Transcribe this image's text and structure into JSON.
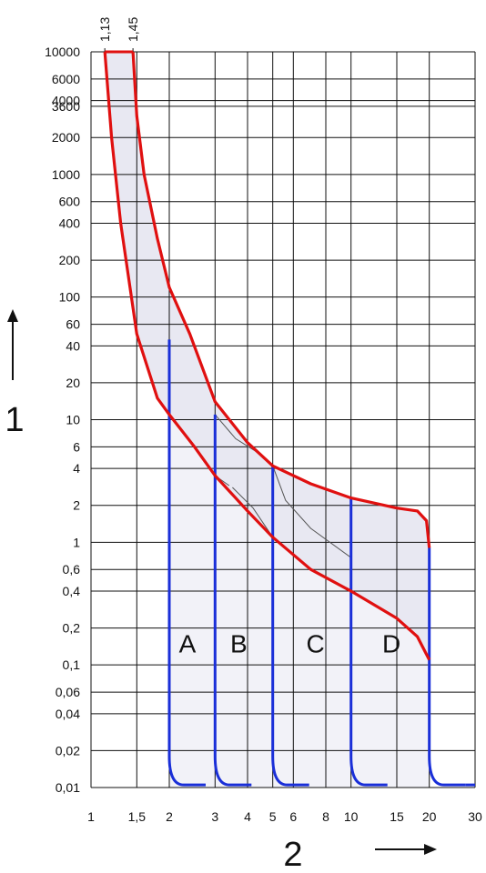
{
  "chart_data": {
    "type": "line",
    "title": "",
    "xlabel": "2",
    "ylabel": "1",
    "xscale": "log",
    "yscale": "log",
    "xlim": [
      1,
      30
    ],
    "ylim": [
      0.01,
      10000
    ],
    "grid": true,
    "x_ticks": [
      {
        "v": 1,
        "label": "1"
      },
      {
        "v": 1.5,
        "label": "1,5"
      },
      {
        "v": 2,
        "label": "2"
      },
      {
        "v": 3,
        "label": "3"
      },
      {
        "v": 4,
        "label": "4"
      },
      {
        "v": 5,
        "label": "5"
      },
      {
        "v": 6,
        "label": "6"
      },
      {
        "v": 8,
        "label": "8"
      },
      {
        "v": 10,
        "label": "10"
      },
      {
        "v": 15,
        "label": "15"
      },
      {
        "v": 20,
        "label": "20"
      },
      {
        "v": 30,
        "label": "30"
      }
    ],
    "y_ticks": [
      {
        "v": 10000,
        "label": "10000"
      },
      {
        "v": 6000,
        "label": "6000"
      },
      {
        "v": 4000,
        "label": "4000"
      },
      {
        "v": 3600,
        "label": "3600"
      },
      {
        "v": 2000,
        "label": "2000"
      },
      {
        "v": 1000,
        "label": "1000"
      },
      {
        "v": 600,
        "label": "600"
      },
      {
        "v": 400,
        "label": "400"
      },
      {
        "v": 200,
        "label": "200"
      },
      {
        "v": 100,
        "label": "100"
      },
      {
        "v": 60,
        "label": "60"
      },
      {
        "v": 40,
        "label": "40"
      },
      {
        "v": 20,
        "label": "20"
      },
      {
        "v": 10,
        "label": "10"
      },
      {
        "v": 6,
        "label": "6"
      },
      {
        "v": 4,
        "label": "4"
      },
      {
        "v": 2,
        "label": "2"
      },
      {
        "v": 1,
        "label": "1"
      },
      {
        "v": 0.6,
        "label": "0,6"
      },
      {
        "v": 0.4,
        "label": "0,4"
      },
      {
        "v": 0.2,
        "label": "0,2"
      },
      {
        "v": 0.1,
        "label": "0,1"
      },
      {
        "v": 0.06,
        "label": "0,06"
      },
      {
        "v": 0.04,
        "label": "0,04"
      },
      {
        "v": 0.02,
        "label": "0,02"
      },
      {
        "v": 0.01,
        "label": "0,01"
      }
    ],
    "top_labels": [
      {
        "v": 1.13,
        "label": "1,13"
      },
      {
        "v": 1.45,
        "label": "1,45"
      }
    ],
    "thermal_curves": [
      {
        "name": "upper",
        "points": [
          [
            1.45,
            10000
          ],
          [
            1.5,
            3000
          ],
          [
            1.6,
            1000
          ],
          [
            1.8,
            300
          ],
          [
            2,
            120
          ],
          [
            2.4,
            50
          ],
          [
            3,
            14
          ],
          [
            4,
            6.5
          ],
          [
            5,
            4.2
          ],
          [
            7,
            3
          ],
          [
            10,
            2.3
          ],
          [
            15,
            1.9
          ],
          [
            18,
            1.8
          ],
          [
            19.5,
            1.5
          ],
          [
            20,
            0.9
          ]
        ]
      },
      {
        "name": "lower",
        "points": [
          [
            1.13,
            10000
          ],
          [
            1.2,
            2000
          ],
          [
            1.3,
            400
          ],
          [
            1.5,
            50
          ],
          [
            1.8,
            15
          ],
          [
            2,
            11
          ],
          [
            2.5,
            6
          ],
          [
            3,
            3.5
          ],
          [
            4,
            1.8
          ],
          [
            5,
            1.1
          ],
          [
            7,
            0.6
          ],
          [
            10,
            0.4
          ],
          [
            15,
            0.24
          ],
          [
            18,
            0.17
          ],
          [
            20,
            0.11
          ]
        ]
      }
    ],
    "zones": [
      {
        "label": "A",
        "x_from": 2,
        "x_to": 3,
        "label_x": 2.35,
        "label_y": 0.15
      },
      {
        "label": "B",
        "x_from": 3,
        "x_to": 5,
        "label_x": 3.7,
        "label_y": 0.15
      },
      {
        "label": "C",
        "x_from": 5,
        "x_to": 10,
        "label_x": 7.3,
        "label_y": 0.15
      },
      {
        "label": "D",
        "x_from": 10,
        "x_to": 20,
        "label_x": 14.3,
        "label_y": 0.15
      }
    ],
    "magnetic_trips": [
      {
        "name": "A",
        "x": 2,
        "top": 45
      },
      {
        "name": "B",
        "x": 3,
        "top": 11
      },
      {
        "name": "C",
        "x": 5,
        "top": 4.2
      },
      {
        "name": "D",
        "x": 10,
        "top": 2.3
      },
      {
        "name": "D-max",
        "x": 20,
        "top": 0.9
      }
    ],
    "colors": {
      "thermal": "#e01010",
      "magnetic": "#1a2fd8",
      "band_fill": "#e8e8f2",
      "zone_fill": "#f2f2f8",
      "grid": "#111111"
    }
  }
}
